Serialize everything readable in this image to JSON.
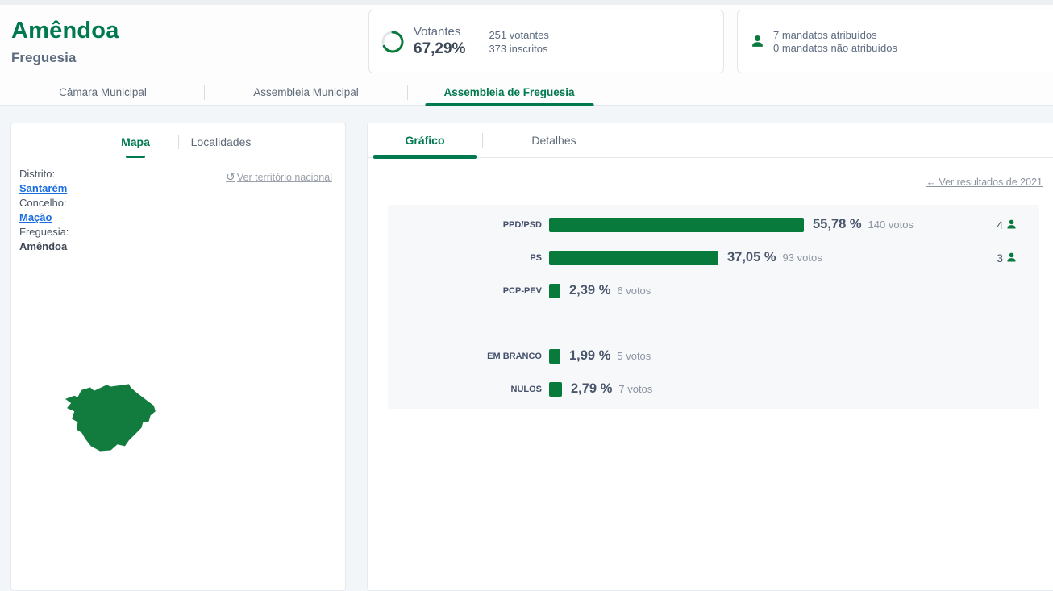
{
  "header": {
    "title": "Amêndoa",
    "subtitle": "Freguesia",
    "votantes_card": {
      "label": "Votantes",
      "percent": "67,29%",
      "percent_value": 67.29,
      "line1": "251 votantes",
      "line2": "373 inscritos"
    },
    "mandates_card": {
      "line1": "7 mandatos atribuídos",
      "line2": "0 mandatos não atribuídos"
    }
  },
  "main_tabs": [
    {
      "label": "Câmara Municipal",
      "active": false
    },
    {
      "label": "Assembleia Municipal",
      "active": false
    },
    {
      "label": "Assembleia de Freguesia",
      "active": true
    }
  ],
  "left_panel": {
    "tabs": [
      {
        "label": "Mapa",
        "active": true
      },
      {
        "label": "Localidades",
        "active": false
      }
    ],
    "reset_link": "Ver território nacional",
    "reset_icon": "↺",
    "location": [
      {
        "label": "Distrito:",
        "value": "Santarém",
        "is_link": true
      },
      {
        "label": "Concelho:",
        "value": "Mação",
        "is_link": true
      },
      {
        "label": "Freguesia:",
        "value": "Amêndoa",
        "is_link": false
      }
    ]
  },
  "right_panel": {
    "tabs": [
      {
        "label": "Gráfico",
        "active": true
      },
      {
        "label": "Detalhes",
        "active": false
      }
    ],
    "back_link": "Ver resultados de 2021",
    "back_arrow": "←"
  },
  "chart_data": {
    "type": "bar",
    "orientation": "horizontal",
    "unit": "%",
    "max_percent": 55.78,
    "grid": false,
    "sections": [
      {
        "name": "partidos",
        "rows": [
          {
            "label": "PPD/PSD",
            "percent": 55.78,
            "percent_label": "55,78 %",
            "votes_label": "140 votos",
            "mandates": 4
          },
          {
            "label": "PS",
            "percent": 37.05,
            "percent_label": "37,05 %",
            "votes_label": "93 votos",
            "mandates": 3
          },
          {
            "label": "PCP-PEV",
            "percent": 2.39,
            "percent_label": "2,39 %",
            "votes_label": "6 votos",
            "mandates": null
          }
        ]
      },
      {
        "name": "outros",
        "rows": [
          {
            "label": "EM BRANCO",
            "percent": 1.99,
            "percent_label": "1,99 %",
            "votes_label": "5 votos",
            "mandates": null
          },
          {
            "label": "NULOS",
            "percent": 2.79,
            "percent_label": "2,79 %",
            "votes_label": "7 votos",
            "mandates": null
          }
        ]
      }
    ]
  },
  "colors": {
    "accent_green": "#00794e",
    "bar_green": "#077a3c",
    "link_blue": "#1a6ee0",
    "muted_text": "#5d6b80",
    "chart_bg": "#f7f8fa"
  }
}
